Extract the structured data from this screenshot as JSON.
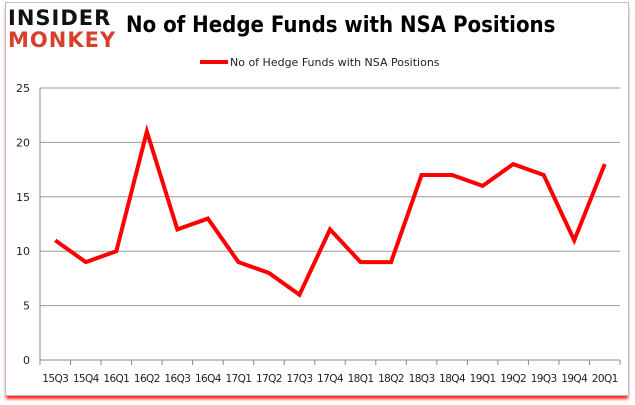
{
  "logo": {
    "top": "INSIDER",
    "bottom": "MONKEY"
  },
  "chart_data": {
    "type": "line",
    "title": "No of Hedge Funds with NSA Positions",
    "categories": [
      "15Q3",
      "15Q4",
      "16Q1",
      "16Q2",
      "16Q3",
      "16Q4",
      "17Q1",
      "17Q2",
      "17Q3",
      "17Q4",
      "18Q1",
      "18Q2",
      "18Q3",
      "18Q4",
      "19Q1",
      "19Q2",
      "19Q3",
      "19Q4",
      "20Q1"
    ],
    "series": [
      {
        "name": "No of Hedge Funds with NSA Positions",
        "color": "#ff0000",
        "values": [
          11,
          9,
          10,
          21,
          12,
          13,
          9,
          8,
          6,
          12,
          9,
          9,
          17,
          17,
          16,
          18,
          17,
          11,
          18
        ]
      }
    ],
    "ylim": [
      0,
      25
    ],
    "yticks": [
      0,
      5,
      10,
      15,
      20,
      25
    ],
    "grid": true,
    "legend": "top-center",
    "xlabel": "",
    "ylabel": ""
  }
}
